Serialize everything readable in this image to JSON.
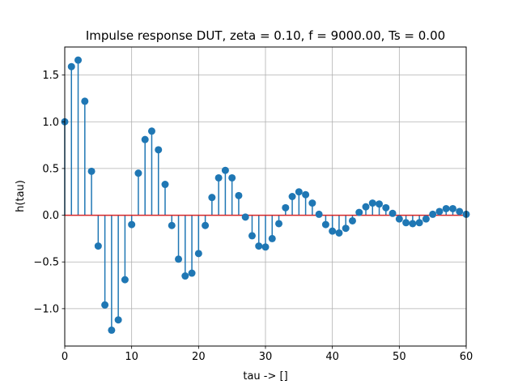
{
  "chart_data": {
    "type": "stem",
    "title": "Impulse response DUT, zeta = 0.10, f = 9000.00, Ts = 0.00",
    "xlabel": "tau -> []",
    "ylabel": "h(tau)",
    "xlim": [
      0,
      60
    ],
    "ylim": [
      -1.4,
      1.8
    ],
    "xticks": [
      0,
      10,
      20,
      30,
      40,
      50,
      60
    ],
    "xtick_labels": [
      "0",
      "10",
      "20",
      "30",
      "40",
      "50",
      "60"
    ],
    "yticks": [
      -1.0,
      -0.5,
      0.0,
      0.5,
      1.0,
      1.5
    ],
    "ytick_labels": [
      "−1.0",
      "−0.5",
      "0.0",
      "0.5",
      "1.0",
      "1.5"
    ],
    "grid": true,
    "stem_color": "#1f77b4",
    "baseline_color": "#d62728",
    "x": [
      0,
      1,
      2,
      3,
      4,
      5,
      6,
      7,
      8,
      9,
      10,
      11,
      12,
      13,
      14,
      15,
      16,
      17,
      18,
      19,
      20,
      21,
      22,
      23,
      24,
      25,
      26,
      27,
      28,
      29,
      30,
      31,
      32,
      33,
      34,
      35,
      36,
      37,
      38,
      39,
      40,
      41,
      42,
      43,
      44,
      45,
      46,
      47,
      48,
      49,
      50,
      51,
      52,
      53,
      54,
      55,
      56,
      57,
      58,
      59,
      60
    ],
    "values": [
      1.0,
      1.59,
      1.66,
      1.22,
      0.47,
      -0.33,
      -0.96,
      -1.23,
      -1.12,
      -0.69,
      -0.1,
      0.45,
      0.81,
      0.9,
      0.7,
      0.33,
      -0.11,
      -0.47,
      -0.65,
      -0.62,
      -0.41,
      -0.11,
      0.19,
      0.4,
      0.48,
      0.4,
      0.21,
      -0.02,
      -0.22,
      -0.33,
      -0.34,
      -0.25,
      -0.09,
      0.08,
      0.2,
      0.25,
      0.22,
      0.13,
      0.01,
      -0.1,
      -0.17,
      -0.19,
      -0.14,
      -0.06,
      0.03,
      0.09,
      0.13,
      0.12,
      0.08,
      0.02,
      -0.04,
      -0.08,
      -0.09,
      -0.08,
      -0.04,
      0.01,
      0.04,
      0.07,
      0.07,
      0.04,
      0.01
    ]
  }
}
